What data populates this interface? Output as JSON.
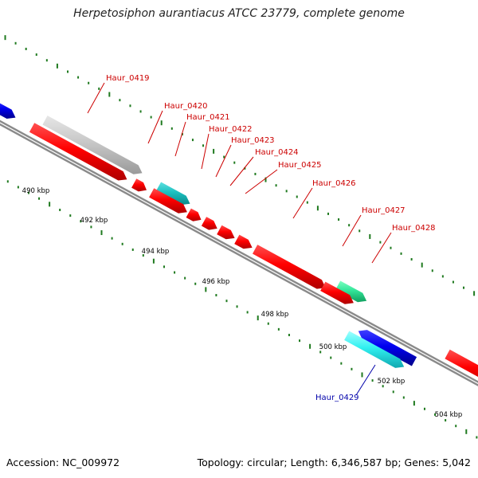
{
  "title": "Herpetosiphon aurantiacus ATCC 23779, complete genome",
  "footer": {
    "accession": "Accession: NC_009972",
    "topology": "Topology: circular; Length: 6,346,587 bp; Genes: 5,042"
  },
  "colors": {
    "label_red": "#cc0000",
    "label_blue": "#0000aa",
    "ruler_tick": "#1f7a1f",
    "ruler_label": "#000000",
    "backbone": "#8a8a8a"
  },
  "ruler": {
    "labels": [
      "490 kbp",
      "492 kbp",
      "494 kbp",
      "496 kbp",
      "498 kbp",
      "500 kbp",
      "502 kbp",
      "504 kbp"
    ]
  },
  "genes": [
    {
      "id": "gene-edge-left",
      "color": "blue"
    },
    {
      "id": "Haur_0419",
      "label": "Haur_0419",
      "color": "gray",
      "label_color": "red"
    },
    {
      "id": "gene-red-long-1",
      "color": "red"
    },
    {
      "id": "gene-red-small-1",
      "color": "red"
    },
    {
      "id": "Haur_0420",
      "label": "Haur_0420",
      "color": "teal",
      "label_color": "red"
    },
    {
      "id": "Haur_0421",
      "label": "Haur_0421",
      "color": "red",
      "label_color": "red"
    },
    {
      "id": "Haur_0422",
      "label": "Haur_0422",
      "color": "red",
      "label_color": "red"
    },
    {
      "id": "Haur_0423",
      "label": "Haur_0423",
      "color": "red",
      "label_color": "red"
    },
    {
      "id": "Haur_0424",
      "label": "Haur_0424",
      "color": "red",
      "label_color": "red"
    },
    {
      "id": "Haur_0425",
      "label": "Haur_0425",
      "color": "red",
      "label_color": "red"
    },
    {
      "id": "Haur_0426",
      "label": "Haur_0426",
      "color": "red",
      "label_color": "red"
    },
    {
      "id": "Haur_0427",
      "label": "Haur_0427",
      "color": "green",
      "label_color": "red"
    },
    {
      "id": "Haur_0428",
      "label": "Haur_0428",
      "color": "red",
      "label_color": "red"
    },
    {
      "id": "gene-blue-1",
      "color": "blue"
    },
    {
      "id": "Haur_0429",
      "label": "Haur_0429",
      "color": "cyan",
      "label_color": "blue"
    },
    {
      "id": "gene-edge-right",
      "color": "red"
    }
  ]
}
